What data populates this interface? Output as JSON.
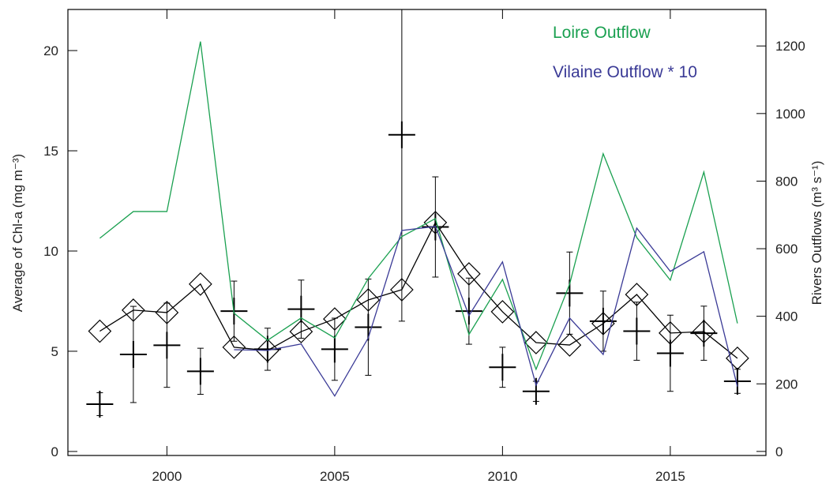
{
  "chart_data": {
    "type": "line",
    "x": [
      1998,
      1999,
      2000,
      2001,
      2002,
      2003,
      2004,
      2005,
      2006,
      2007,
      2008,
      2009,
      2010,
      2011,
      2012,
      2013,
      2014,
      2015,
      2016,
      2017
    ],
    "xlim": [
      1997.05,
      2017.85
    ],
    "xticks": [
      2000,
      2005,
      2010,
      2015
    ],
    "ylim": [
      -0.2,
      22.05
    ],
    "yticks": [
      0,
      5,
      10,
      15,
      20
    ],
    "y2lim": [
      -12,
      1308
    ],
    "y2ticks": [
      0,
      200,
      400,
      600,
      800,
      1000,
      1200
    ],
    "ylabel": "Average of Chl-a (mg m⁻³)",
    "y2label": "Rivers Outflows (m³ s⁻¹)",
    "series": [
      {
        "marker": "cross",
        "color": "#000000",
        "values": [
          2.36,
          4.84,
          5.3,
          4.0,
          7.0,
          5.1,
          7.1,
          5.1,
          6.2,
          15.8,
          11.2,
          7.0,
          4.2,
          3.0,
          7.9,
          6.5,
          6.0,
          4.9,
          5.9,
          3.5
        ],
        "errors": [
          0.57,
          2.4,
          2.1,
          1.15,
          1.5,
          1.05,
          1.45,
          1.55,
          2.4,
          9.3,
          2.5,
          1.65,
          1.0,
          0.5,
          2.05,
          1.5,
          1.45,
          1.9,
          1.35,
          0.6
        ]
      },
      {
        "marker": "diamond",
        "color": "#000000",
        "values": [
          6.0,
          7.05,
          6.93,
          8.35,
          5.2,
          5.04,
          5.98,
          6.61,
          7.56,
          8.07,
          11.42,
          8.86,
          6.97,
          5.43,
          5.31,
          6.38,
          7.83,
          5.91,
          5.98,
          4.65
        ]
      },
      {
        "name": "Loire Outflow",
        "axis": "y2",
        "color": "#1aa050",
        "values": [
          631,
          710,
          710,
          1213,
          409,
          329,
          395,
          336,
          512,
          636,
          689,
          346,
          509,
          243,
          495,
          881,
          633,
          507,
          827,
          379
        ]
      },
      {
        "name": "Vilaine Outflow * 10",
        "axis": "y2",
        "color": "#3a3a96",
        "values": [
          null,
          null,
          null,
          null,
          301,
          299,
          318,
          164,
          336,
          654,
          666,
          402,
          561,
          196,
          395,
          287,
          661,
          533,
          591,
          192
        ]
      }
    ]
  }
}
